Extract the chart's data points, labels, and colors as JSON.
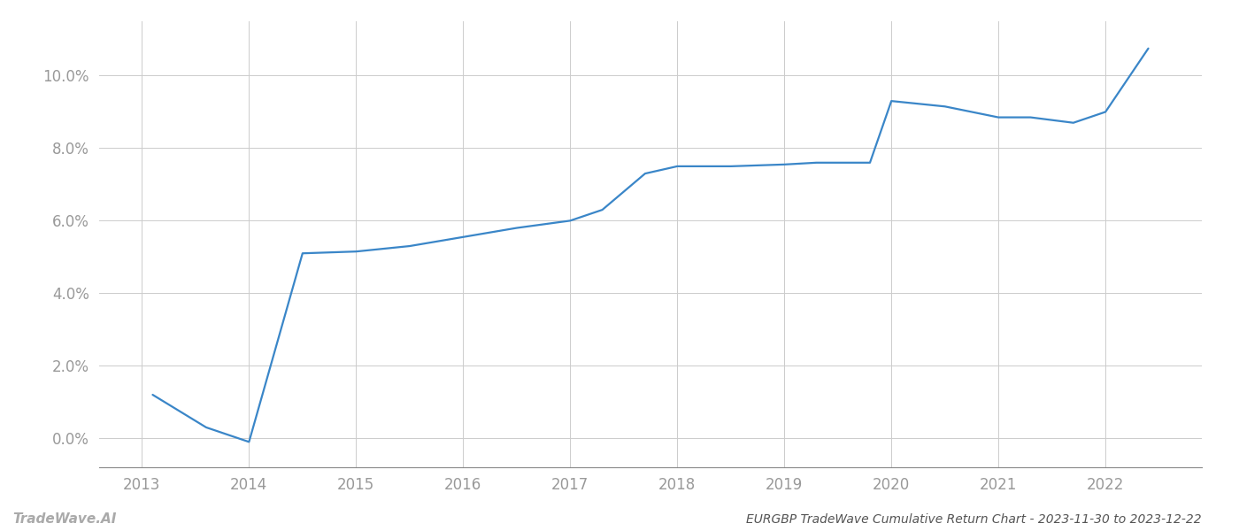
{
  "x_years": [
    2013.1,
    2013.6,
    2014.0,
    2014.5,
    2015.0,
    2015.5,
    2016.0,
    2016.5,
    2017.0,
    2017.3,
    2017.7,
    2018.0,
    2018.5,
    2019.0,
    2019.3,
    2019.8,
    2020.0,
    2020.5,
    2021.0,
    2021.3,
    2021.7,
    2022.0,
    2022.4
  ],
  "y_values": [
    1.2,
    0.3,
    -0.1,
    5.1,
    5.15,
    5.3,
    5.55,
    5.8,
    6.0,
    6.3,
    7.3,
    7.5,
    7.5,
    7.55,
    7.6,
    7.6,
    9.3,
    9.15,
    8.85,
    8.85,
    8.7,
    9.0,
    10.75
  ],
  "line_color": "#3a86c8",
  "line_width": 1.6,
  "title": "EURGBP TradeWave Cumulative Return Chart - 2023-11-30 to 2023-12-22",
  "watermark": "TradeWave.AI",
  "xlim": [
    2012.6,
    2022.9
  ],
  "ylim": [
    -0.8,
    11.5
  ],
  "ytick_values": [
    0.0,
    2.0,
    4.0,
    6.0,
    8.0,
    10.0
  ],
  "xtick_values": [
    2013,
    2014,
    2015,
    2016,
    2017,
    2018,
    2019,
    2020,
    2021,
    2022
  ],
  "bg_color": "#ffffff",
  "grid_color": "#cccccc",
  "tick_label_color": "#999999",
  "title_color": "#555555",
  "watermark_color": "#aaaaaa",
  "title_fontsize": 10,
  "tick_fontsize": 12
}
